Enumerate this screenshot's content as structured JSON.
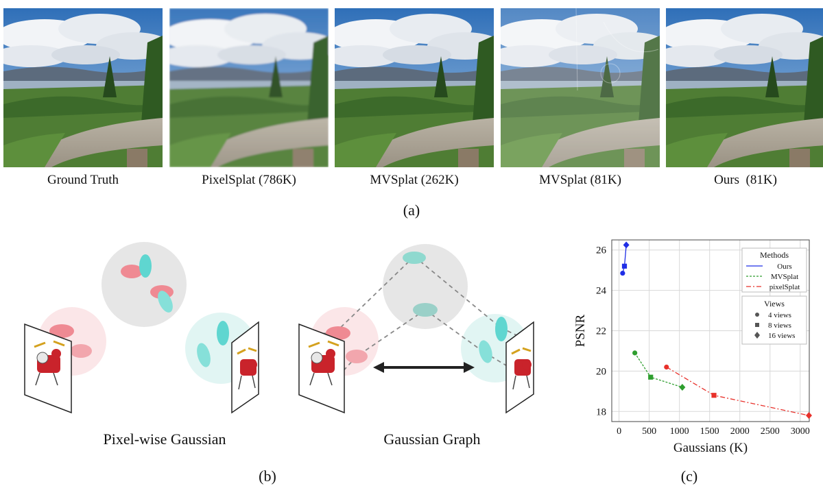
{
  "panel_a": {
    "captions": [
      "Ground Truth",
      "PixelSplat (786K)",
      "MVSplat (262K)",
      "MVSplat (81K)",
      "Ours  (81K)"
    ],
    "label": "(a)"
  },
  "panel_b": {
    "left_caption": "Pixel-wise Gaussian",
    "right_caption": "Gaussian Graph",
    "label": "(b)"
  },
  "panel_c": {
    "label": "(c)"
  },
  "colors": {
    "ours": "#1f2ee6",
    "mvsplat": "#2e9e2e",
    "pixelsplat": "#e8302a",
    "gauss_red": "#ef8a93",
    "gauss_cyan": "#5fd6d0"
  },
  "chart_data": {
    "type": "line",
    "xlabel": "Gaussians (K)",
    "ylabel": "PSNR",
    "xlim": [
      -120,
      3150
    ],
    "ylim": [
      17.5,
      26.5
    ],
    "xticks": [
      0,
      500,
      1000,
      1500,
      2000,
      2500,
      3000
    ],
    "yticks": [
      18,
      20,
      22,
      24,
      26
    ],
    "grid": true,
    "legend_placement": "top-right",
    "legend_methods_title": "Methods",
    "legend_views_title": "Views",
    "series": [
      {
        "name": "Ours",
        "style": "solid",
        "color": "#1f2ee6",
        "points": [
          {
            "x": 60,
            "y": 24.85,
            "views": 4
          },
          {
            "x": 90,
            "y": 25.2,
            "views": 8
          },
          {
            "x": 120,
            "y": 26.25,
            "views": 16
          }
        ]
      },
      {
        "name": "MVSplat",
        "style": "dotted",
        "color": "#2e9e2e",
        "points": [
          {
            "x": 262,
            "y": 20.9,
            "views": 4
          },
          {
            "x": 524,
            "y": 19.7,
            "views": 8
          },
          {
            "x": 1048,
            "y": 19.2,
            "views": 16
          }
        ]
      },
      {
        "name": "pixelSplat",
        "style": "dashdot",
        "color": "#e8302a",
        "points": [
          {
            "x": 786,
            "y": 20.2,
            "views": 4
          },
          {
            "x": 1572,
            "y": 18.8,
            "views": 8
          },
          {
            "x": 3144,
            "y": 17.8,
            "views": 16
          }
        ]
      }
    ],
    "views": [
      {
        "label": "4 views",
        "marker": "circle"
      },
      {
        "label": "8 views",
        "marker": "square"
      },
      {
        "label": "16 views",
        "marker": "diamond"
      }
    ]
  }
}
